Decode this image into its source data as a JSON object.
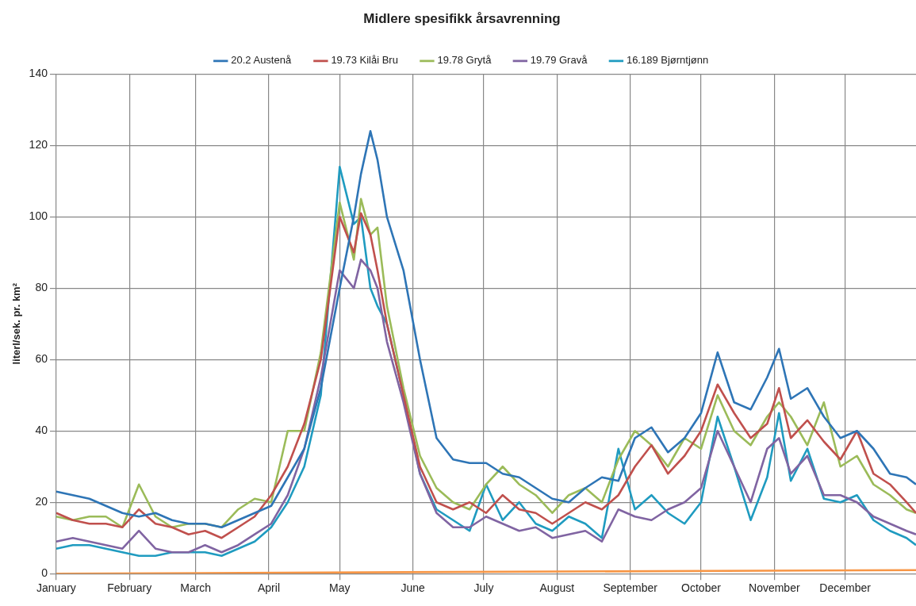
{
  "chart_data": {
    "type": "line",
    "title": "Midlere spesifikk årsavrenning",
    "ylabel": "literl/sek. pr. km²",
    "x": [
      "--01-01",
      "--01-08",
      "--01-15",
      "--01-22",
      "--01-29",
      "--02-05",
      "--02-12",
      "--02-19",
      "--02-26",
      "--03-05",
      "--03-12",
      "--03-19",
      "--03-26",
      "--04-02",
      "--04-09",
      "--04-16",
      "--04-23",
      "--05-01",
      "--05-07",
      "--05-10",
      "--05-14",
      "--05-17",
      "--05-21",
      "--05-28",
      "--06-04",
      "--06-11",
      "--06-18",
      "--06-25",
      "--07-02",
      "--07-09",
      "--07-16",
      "--07-23",
      "--07-30",
      "--08-06",
      "--08-13",
      "--08-20",
      "--08-27",
      "--09-03",
      "--09-10",
      "--09-17",
      "--09-24",
      "--10-01",
      "--10-08",
      "--10-15",
      "--10-22",
      "--10-29",
      "--11-03",
      "--11-08",
      "--11-15",
      "--11-22",
      "--11-29",
      "--12-06",
      "--12-13",
      "--12-20",
      "--12-27",
      "--12-31"
    ],
    "series": [
      {
        "name": "20.2 Austenå",
        "color": "#2e75b6",
        "values": [
          23,
          22,
          21,
          19,
          17,
          16,
          17,
          15,
          14,
          14,
          13,
          15,
          17,
          19,
          27,
          35,
          52,
          80,
          100,
          112,
          124,
          116,
          100,
          85,
          60,
          38,
          32,
          31,
          31,
          28,
          27,
          24,
          21,
          20,
          24,
          27,
          26,
          38,
          41,
          34,
          38,
          45,
          62,
          48,
          46,
          55,
          63,
          49,
          52,
          44,
          38,
          40,
          35,
          28,
          27,
          25
        ]
      },
      {
        "name": "19.73 Kilåi Bru",
        "color": "#c0504d",
        "values": [
          17,
          15,
          14,
          14,
          13,
          18,
          14,
          13,
          11,
          12,
          10,
          13,
          16,
          22,
          30,
          42,
          60,
          100,
          90,
          101,
          95,
          85,
          70,
          50,
          30,
          20,
          18,
          20,
          17,
          22,
          18,
          17,
          14,
          17,
          20,
          18,
          22,
          30,
          36,
          28,
          33,
          40,
          53,
          45,
          38,
          42,
          52,
          38,
          43,
          37,
          32,
          40,
          28,
          25,
          20,
          17
        ]
      },
      {
        "name": "19.78 Grytå",
        "color": "#9bbb59",
        "values": [
          16,
          15,
          16,
          16,
          13,
          25,
          16,
          13,
          14,
          14,
          13,
          18,
          21,
          20,
          40,
          40,
          62,
          104,
          88,
          105,
          95,
          97,
          75,
          52,
          33,
          24,
          20,
          18,
          25,
          30,
          25,
          22,
          17,
          22,
          24,
          20,
          32,
          40,
          36,
          30,
          38,
          35,
          50,
          40,
          36,
          44,
          48,
          44,
          36,
          48,
          30,
          33,
          25,
          22,
          18,
          17
        ]
      },
      {
        "name": "19.79 Gravå",
        "color": "#8064a2",
        "values": [
          9,
          10,
          9,
          8,
          7,
          12,
          7,
          6,
          6,
          8,
          6,
          8,
          11,
          14,
          22,
          35,
          55,
          85,
          80,
          88,
          85,
          80,
          65,
          48,
          28,
          17,
          13,
          13,
          16,
          14,
          12,
          13,
          10,
          11,
          12,
          9,
          18,
          16,
          15,
          18,
          20,
          24,
          40,
          30,
          20,
          35,
          38,
          28,
          33,
          22,
          22,
          20,
          16,
          14,
          12,
          11
        ]
      },
      {
        "name": "16.189 Bjørntjønn",
        "color": "#1f9bc0",
        "values": [
          7,
          8,
          8,
          7,
          6,
          5,
          5,
          6,
          6,
          6,
          5,
          7,
          9,
          13,
          20,
          30,
          50,
          114,
          98,
          100,
          80,
          75,
          70,
          50,
          28,
          18,
          15,
          12,
          25,
          15,
          20,
          14,
          12,
          16,
          14,
          10,
          35,
          18,
          22,
          17,
          14,
          20,
          44,
          30,
          15,
          27,
          45,
          26,
          35,
          21,
          20,
          22,
          15,
          12,
          10,
          8
        ]
      },
      {
        "color": "#f79646",
        "x": [
          "--01-01",
          "--12-31"
        ],
        "values": [
          0,
          1
        ]
      }
    ],
    "xlim": [
      "--01-01",
      "--12-31"
    ],
    "xticks": [
      {
        "value": "--01-01",
        "label": "January"
      },
      {
        "value": "--02-01",
        "label": "February"
      },
      {
        "value": "--03-01",
        "label": "March"
      },
      {
        "value": "--04-01",
        "label": "April"
      },
      {
        "value": "--05-01",
        "label": "May"
      },
      {
        "value": "--06-01",
        "label": "June"
      },
      {
        "value": "--07-01",
        "label": "July"
      },
      {
        "value": "--08-01",
        "label": "August"
      },
      {
        "value": "--09-01",
        "label": "September"
      },
      {
        "value": "--10-01",
        "label": "October"
      },
      {
        "value": "--11-01",
        "label": "November"
      },
      {
        "value": "--12-01",
        "label": "December"
      }
    ],
    "ylim": [
      0,
      140
    ],
    "yticks": [
      0,
      20,
      40,
      60,
      80,
      100,
      120,
      140
    ],
    "grid": true,
    "legend": "top"
  }
}
